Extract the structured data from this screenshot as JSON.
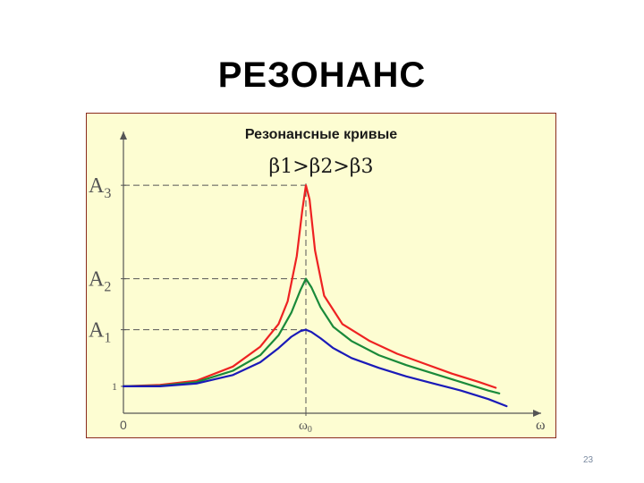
{
  "slide": {
    "title": "РЕЗОНАНС",
    "page_number": "23"
  },
  "chart_data": {
    "type": "line",
    "title": "Резонансные кривые",
    "subtitle": "β1>β2>β3",
    "xlabel": "ω",
    "ylabel": "",
    "x_ticks": [
      {
        "value": 0,
        "label": "0"
      },
      {
        "value": 1,
        "label": "ω0"
      }
    ],
    "y_ticks": [
      {
        "value": 1,
        "label": "1"
      },
      {
        "value": 3,
        "label": "A1"
      },
      {
        "value": 4.8,
        "label": "A2"
      },
      {
        "value": 8.1,
        "label": "A3"
      }
    ],
    "xlim": [
      0,
      2.25
    ],
    "ylim": [
      0.05,
      10
    ],
    "reference_lines": [
      {
        "type": "vertical",
        "x": 1,
        "style": "dashed"
      },
      {
        "type": "horizontal",
        "y": 3,
        "style": "dashed"
      },
      {
        "type": "horizontal",
        "y": 4.8,
        "style": "dashed"
      },
      {
        "type": "horizontal",
        "y": 8.1,
        "style": "dashed"
      }
    ],
    "colors": {
      "red": "#ee2222",
      "green": "#1a8a3a",
      "blue": "#1a1ab8",
      "axis": "#555555",
      "frame": "#8a2b1e"
    },
    "series": [
      {
        "color": "#ee2222",
        "x": [
          0,
          0.2,
          0.4,
          0.6,
          0.75,
          0.85,
          0.9,
          0.95,
          0.98,
          1.0,
          1.02,
          1.05,
          1.1,
          1.2,
          1.35,
          1.5,
          1.65,
          1.8,
          1.95,
          2.04
        ],
        "y": [
          1.0,
          1.05,
          1.2,
          1.7,
          2.4,
          3.2,
          4.0,
          5.6,
          7.2,
          8.1,
          7.6,
          5.8,
          4.2,
          3.2,
          2.6,
          2.15,
          1.8,
          1.45,
          1.15,
          0.95
        ]
      },
      {
        "color": "#1a8a3a",
        "x": [
          0,
          0.2,
          0.4,
          0.6,
          0.75,
          0.85,
          0.92,
          0.97,
          1.0,
          1.03,
          1.08,
          1.15,
          1.25,
          1.4,
          1.55,
          1.7,
          1.85,
          2.0,
          2.06
        ],
        "y": [
          1.0,
          1.02,
          1.15,
          1.55,
          2.1,
          2.8,
          3.6,
          4.4,
          4.8,
          4.5,
          3.8,
          3.1,
          2.6,
          2.1,
          1.75,
          1.45,
          1.15,
          0.85,
          0.75
        ]
      },
      {
        "color": "#1a1ab8",
        "x": [
          0,
          0.2,
          0.4,
          0.6,
          0.75,
          0.85,
          0.92,
          0.97,
          1.0,
          1.03,
          1.08,
          1.15,
          1.25,
          1.4,
          1.55,
          1.7,
          1.85,
          2.0,
          2.1
        ],
        "y": [
          1.0,
          1.0,
          1.1,
          1.4,
          1.85,
          2.35,
          2.75,
          2.95,
          3.0,
          2.92,
          2.7,
          2.35,
          2.0,
          1.65,
          1.35,
          1.1,
          0.85,
          0.55,
          0.3
        ]
      }
    ]
  }
}
